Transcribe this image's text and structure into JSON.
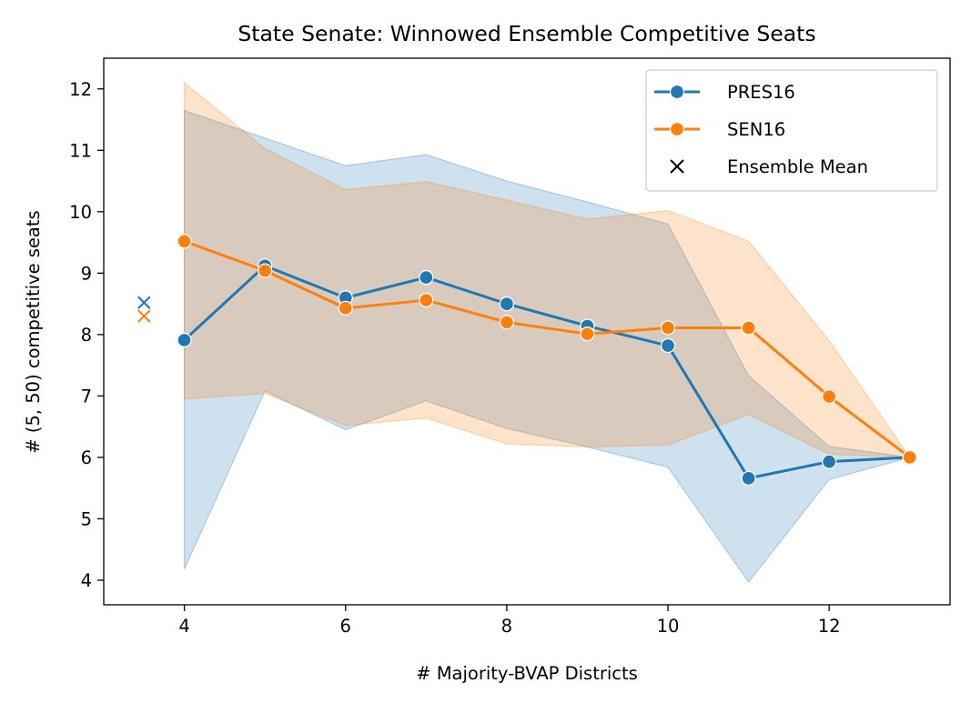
{
  "chart_data": {
    "type": "line",
    "title": "State Senate: Winnowed Ensemble Competitive Seats",
    "xlabel": "# Majority-BVAP Districts",
    "ylabel": "# (5, 50) competitive seats",
    "xlim": [
      3.0,
      13.5
    ],
    "ylim": [
      3.6,
      12.5
    ],
    "xticks": [
      4,
      6,
      8,
      10,
      12
    ],
    "yticks": [
      4,
      5,
      6,
      7,
      8,
      9,
      10,
      11,
      12
    ],
    "grid": false,
    "legend_position": "upper right",
    "series": [
      {
        "name": "PRES16",
        "color": "#1f77b4",
        "x": [
          4,
          5,
          6,
          7,
          8,
          9,
          10,
          11,
          12,
          13
        ],
        "y": [
          7.91,
          9.12,
          8.6,
          8.93,
          8.5,
          8.14,
          7.82,
          5.66,
          5.93,
          6.0
        ],
        "band_lower": [
          4.18,
          7.08,
          6.45,
          6.92,
          6.47,
          6.17,
          5.84,
          3.97,
          5.64,
          6.0
        ],
        "band_upper": [
          11.65,
          11.2,
          10.75,
          10.93,
          10.5,
          10.16,
          9.8,
          7.33,
          6.18,
          6.0
        ]
      },
      {
        "name": "SEN16",
        "color": "#ff7f0e",
        "x": [
          4,
          5,
          6,
          7,
          8,
          9,
          10,
          11,
          12,
          13
        ],
        "y": [
          9.52,
          9.04,
          8.43,
          8.56,
          8.2,
          8.01,
          8.11,
          8.11,
          6.99,
          6.0
        ],
        "band_lower": [
          6.95,
          7.04,
          6.52,
          6.64,
          6.22,
          6.17,
          6.2,
          6.7,
          6.05,
          6.0
        ],
        "band_upper": [
          12.1,
          11.03,
          10.36,
          10.49,
          10.19,
          9.88,
          10.02,
          9.52,
          7.9,
          6.0
        ]
      }
    ],
    "ensemble_mean": {
      "name": "Ensemble Mean",
      "points": [
        {
          "x": 3.5,
          "y": 8.52,
          "color": "#1f77b4"
        },
        {
          "x": 3.5,
          "y": 8.3,
          "color": "#ff7f0e"
        }
      ]
    },
    "legend": [
      "PRES16",
      "SEN16",
      "Ensemble Mean"
    ]
  }
}
